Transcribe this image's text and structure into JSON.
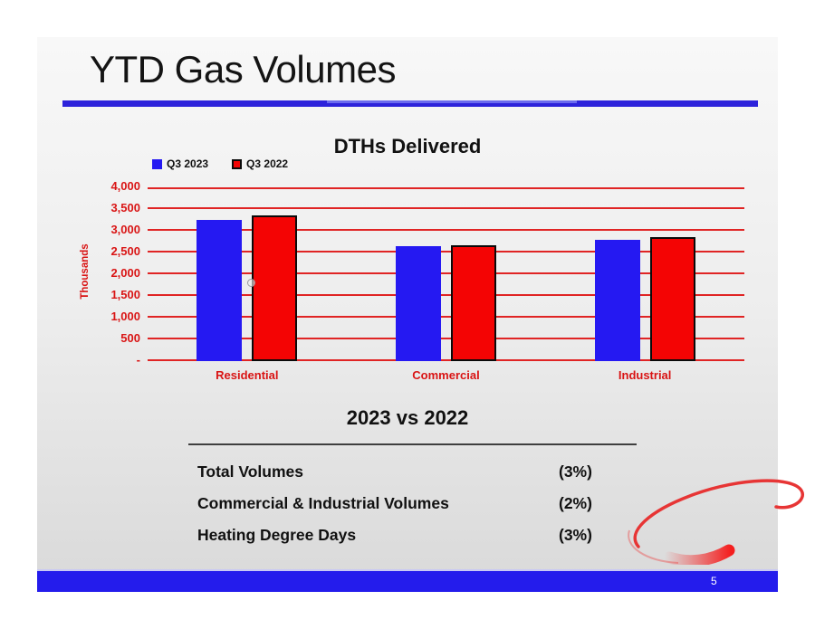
{
  "slide": {
    "title": "YTD Gas Volumes"
  },
  "chart_data": {
    "type": "bar",
    "title": "DTHs Delivered",
    "categories": [
      "Residential",
      "Commercial",
      "Industrial"
    ],
    "series": [
      {
        "name": "Q3 2023",
        "color": "#2519f2",
        "values": [
          3250,
          2640,
          2800
        ]
      },
      {
        "name": "Q3 2022",
        "color": "#f40404",
        "values": [
          3350,
          2670,
          2850
        ]
      }
    ],
    "ylabel": "Thousands",
    "ylim": [
      0,
      4000
    ],
    "ytick_step": 500,
    "ytick_labels": [
      "-",
      "500",
      "1,000",
      "1,500",
      "2,000",
      "2,500",
      "3,000",
      "3,500",
      "4,000"
    ],
    "grid": true,
    "legend_position": "top-left"
  },
  "comparison": {
    "heading": "2023 vs 2022",
    "rows": [
      {
        "label": "Total Volumes",
        "value": "(3%)"
      },
      {
        "label": "Commercial & Industrial Volumes",
        "value": "(2%)"
      },
      {
        "label": "Heating Degree Days",
        "value": "(3%)"
      }
    ]
  },
  "footer": {
    "page_number": "5"
  },
  "colors": {
    "bar_blue": "#2519f2",
    "bar_red": "#f40404",
    "grid_red": "#e02424",
    "axis_red": "#d91414",
    "underline_blue": "#2d23db",
    "footer_blue": "#241cec",
    "swoosh_red": "#ed2024"
  }
}
